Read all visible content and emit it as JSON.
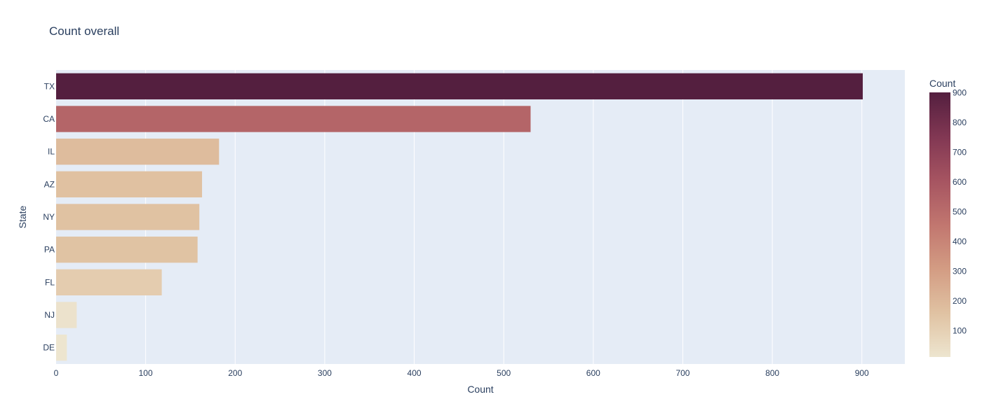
{
  "chart_data": {
    "type": "bar",
    "orientation": "horizontal",
    "title": "Count overall",
    "xlabel": "Count",
    "ylabel": "State",
    "categories": [
      "TX",
      "CA",
      "IL",
      "AZ",
      "NY",
      "PA",
      "FL",
      "NJ",
      "DE"
    ],
    "values": [
      901,
      530,
      182,
      163,
      160,
      158,
      118,
      23,
      12
    ],
    "xlim": [
      0,
      948
    ],
    "xticks": [
      0,
      100,
      200,
      300,
      400,
      500,
      600,
      700,
      800,
      900
    ],
    "grid": true,
    "colorbar": {
      "title": "Count",
      "ticks": [
        100,
        200,
        300,
        400,
        500,
        600,
        700,
        800,
        900
      ],
      "range": [
        12,
        901
      ],
      "colorscale": [
        "#ede5cf",
        "#e0c2a2",
        "#d39c83",
        "#c1766f",
        "#a65461",
        "#813753",
        "#541f3f"
      ]
    },
    "colors": {
      "plot_bg": "#e5ecf6",
      "grid": "#ffffff",
      "text": "#2a3f5f"
    }
  }
}
